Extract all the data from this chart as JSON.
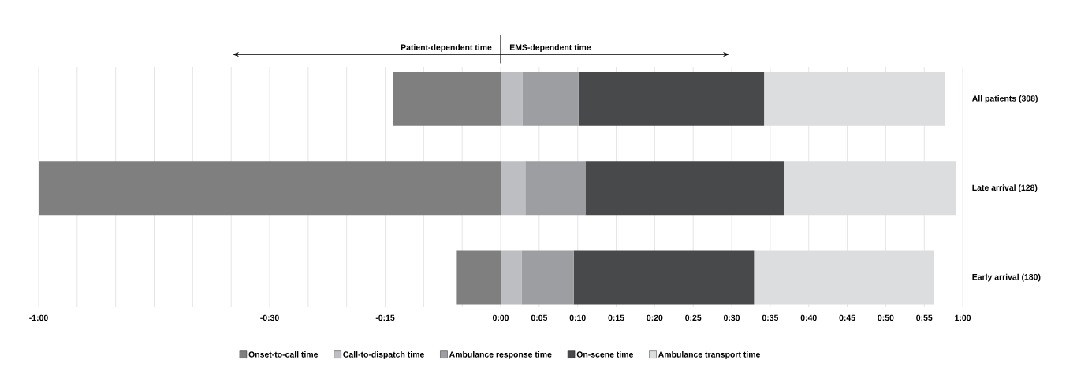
{
  "chart_data": {
    "type": "bar",
    "orientation": "horizontal",
    "stacked": true,
    "categories": [
      "All patients (308)",
      "Late arrival (128)",
      "Early arrival (180)"
    ],
    "series": [
      {
        "name": "Onset-to-call time",
        "color": "#7f7f7f",
        "values": [
          -14,
          -60,
          -5.8
        ]
      },
      {
        "name": "Call-to-dispatch time",
        "color": "#bdbec2",
        "values": [
          2.8,
          3.2,
          2.7
        ]
      },
      {
        "name": "Ambulance response time",
        "color": "#9d9ea1",
        "values": [
          7.3,
          7.8,
          6.8
        ]
      },
      {
        "name": "On-scene time",
        "color": "#48494b",
        "values": [
          24.1,
          25.8,
          23.4
        ]
      },
      {
        "name": "Ambulance transport time",
        "color": "#dcdddf",
        "values": [
          23.5,
          22.3,
          23.4
        ]
      }
    ],
    "xlim": [
      -60,
      60
    ],
    "xticks": [
      {
        "value": -60,
        "label": "-1:00"
      },
      {
        "value": -55,
        "label": null
      },
      {
        "value": -50,
        "label": null
      },
      {
        "value": -45,
        "label": null
      },
      {
        "value": -40,
        "label": null
      },
      {
        "value": -35,
        "label": null
      },
      {
        "value": -30,
        "label": "-0:30"
      },
      {
        "value": -25,
        "label": null
      },
      {
        "value": -20,
        "label": null
      },
      {
        "value": -15,
        "label": "-0:15"
      },
      {
        "value": -10,
        "label": null
      },
      {
        "value": -5,
        "label": null
      },
      {
        "value": 0,
        "label": "0:00"
      },
      {
        "value": 5,
        "label": "0:05"
      },
      {
        "value": 10,
        "label": "0:10"
      },
      {
        "value": 15,
        "label": "0:15"
      },
      {
        "value": 20,
        "label": "0:20"
      },
      {
        "value": 25,
        "label": "0:25"
      },
      {
        "value": 30,
        "label": "0:30"
      },
      {
        "value": 35,
        "label": "0:35"
      },
      {
        "value": 40,
        "label": "0:40"
      },
      {
        "value": 45,
        "label": "0:45"
      },
      {
        "value": 50,
        "label": "0:50"
      },
      {
        "value": 55,
        "label": "0:55"
      },
      {
        "value": 60,
        "label": "1:00"
      }
    ],
    "grid": "x",
    "legend": "bottom",
    "annotations": [
      "Patient-dependent time",
      "EMS-dependent time"
    ]
  }
}
